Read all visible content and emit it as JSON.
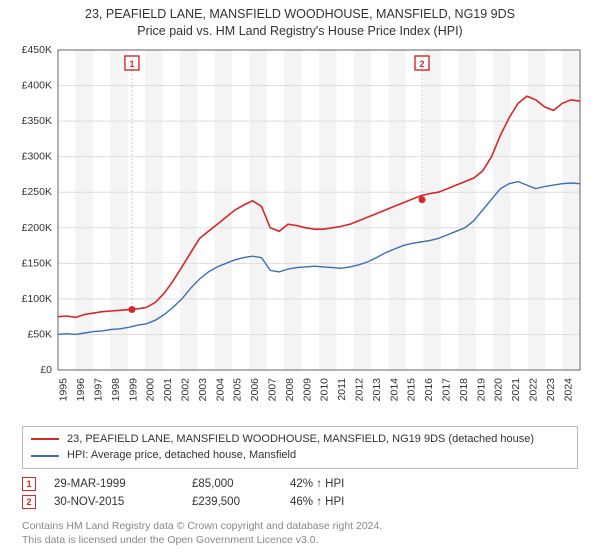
{
  "title_line1": "23, PEAFIELD LANE, MANSFIELD WOODHOUSE, MANSFIELD, NG19 9DS",
  "title_line2": "Price paid vs. HM Land Registry's House Price Index (HPI)",
  "chart": {
    "type": "line",
    "background_color": "#ffffff",
    "grid_color": "#dddddd",
    "band_color": "#f4f4f4",
    "axis_color": "#666666",
    "text_color": "#333333",
    "ylim": [
      0,
      450000
    ],
    "ytick_step": 50000,
    "ytick_labels": [
      "£0",
      "£50K",
      "£100K",
      "£150K",
      "£200K",
      "£250K",
      "£300K",
      "£350K",
      "£400K",
      "£450K"
    ],
    "x_years": [
      1995,
      1996,
      1997,
      1998,
      1999,
      2000,
      2001,
      2002,
      2003,
      2004,
      2005,
      2006,
      2007,
      2008,
      2009,
      2010,
      2011,
      2012,
      2013,
      2014,
      2015,
      2016,
      2017,
      2018,
      2019,
      2020,
      2021,
      2022,
      2023,
      2024
    ],
    "series": {
      "property": {
        "label": "23, PEAFIELD LANE, MANSFIELD WOODHOUSE, MANSFIELD, NG19 9DS (detached house)",
        "color": "#d62728",
        "values": [
          75,
          76,
          74,
          78,
          80,
          82,
          83,
          84,
          85,
          86,
          88,
          95,
          108,
          125,
          145,
          165,
          185,
          195,
          205,
          215,
          225,
          232,
          238,
          230,
          200,
          195,
          205,
          203,
          200,
          198,
          198,
          200,
          202,
          205,
          210,
          215,
          220,
          225,
          230,
          235,
          240,
          245,
          248,
          250,
          255,
          260,
          265,
          270,
          280,
          300,
          330,
          355,
          375,
          385,
          380,
          370,
          365,
          375,
          380,
          378
        ]
      },
      "hpi": {
        "label": "HPI: Average price, detached house, Mansfield",
        "color": "#3b6fb6",
        "values": [
          50,
          51,
          50,
          52,
          54,
          55,
          57,
          58,
          60,
          63,
          65,
          70,
          78,
          88,
          100,
          115,
          128,
          138,
          145,
          150,
          155,
          158,
          160,
          158,
          140,
          138,
          142,
          144,
          145,
          146,
          145,
          144,
          143,
          145,
          148,
          152,
          158,
          165,
          170,
          175,
          178,
          180,
          182,
          185,
          190,
          195,
          200,
          210,
          225,
          240,
          255,
          262,
          265,
          260,
          255,
          258,
          260,
          262,
          263,
          262
        ]
      }
    },
    "markers": [
      {
        "n": "1",
        "year": 1999.25,
        "value": 85000,
        "color": "#d62728"
      },
      {
        "n": "2",
        "year": 2015.92,
        "value": 239500,
        "color": "#d62728"
      }
    ]
  },
  "legend": {
    "items": [
      {
        "color": "#d62728",
        "text": "23, PEAFIELD LANE, MANSFIELD WOODHOUSE, MANSFIELD, NG19 9DS (detached house)"
      },
      {
        "color": "#3b6fb6",
        "text": "HPI: Average price, detached house, Mansfield"
      }
    ]
  },
  "sales": [
    {
      "n": "1",
      "color": "#d62728",
      "date": "29-MAR-1999",
      "price": "£85,000",
      "hpi": "42% ↑ HPI"
    },
    {
      "n": "2",
      "color": "#d62728",
      "date": "30-NOV-2015",
      "price": "£239,500",
      "hpi": "46% ↑ HPI"
    }
  ],
  "footer_line1": "Contains HM Land Registry data © Crown copyright and database right 2024.",
  "footer_line2": "This data is licensed under the Open Government Licence v3.0."
}
